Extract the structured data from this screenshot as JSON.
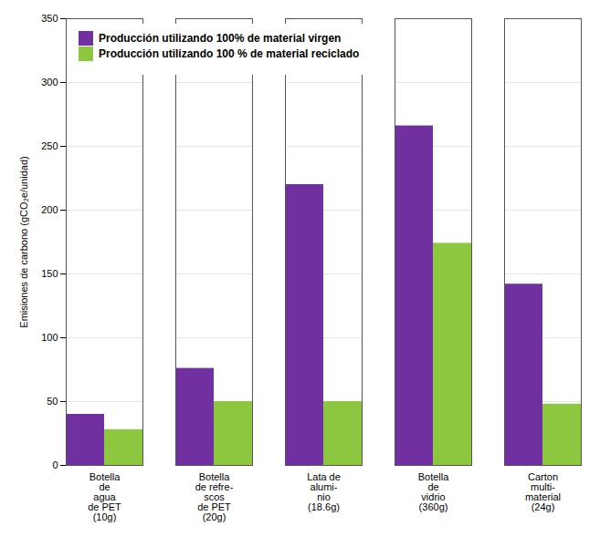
{
  "chart_data": {
    "type": "bar",
    "categories": [
      "Botella\nde\nagua\nde PET\n(10g)",
      "Botella\nde refre-\nscos\nde PET\n(20g)",
      "Lata de\nalumi-\nnio\n(18.6g)",
      "Botella\nde\nvidrio\n(360g)",
      "Carton\nmulti-\nmaterial\n(24g)"
    ],
    "series": [
      {
        "name": "Producción utilizando 100% de material virgen",
        "color": "#7030A0",
        "values": [
          40,
          76,
          220,
          266,
          142
        ]
      },
      {
        "name": "Producción utilizando 100 % de material reciclado",
        "color": "#8DC63F",
        "values": [
          28,
          50,
          50,
          174,
          48
        ]
      }
    ],
    "ylabel": "Emisiones de carbono (gCO₂e/unidad)",
    "ylim": [
      0,
      350
    ],
    "yticks": [
      0,
      50,
      100,
      150,
      200,
      250,
      300,
      350
    ],
    "grid": true,
    "legend": "upper left"
  }
}
